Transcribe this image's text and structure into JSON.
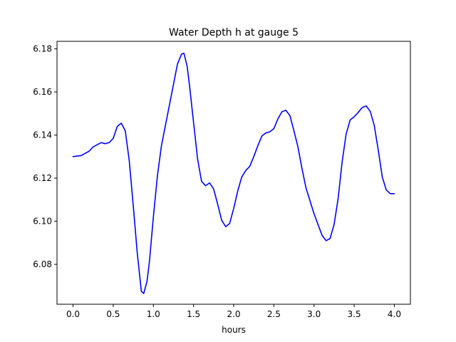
{
  "chart_data": {
    "type": "line",
    "title": "Water Depth h at gauge 5",
    "xlabel": "hours",
    "ylabel": "",
    "xlim": [
      -0.2,
      4.2
    ],
    "ylim": [
      6.0615,
      6.1835
    ],
    "grid": false,
    "xticks": [
      0.0,
      0.5,
      1.0,
      1.5,
      2.0,
      2.5,
      3.0,
      3.5,
      4.0
    ],
    "xtick_labels": [
      "0.0",
      "0.5",
      "1.0",
      "1.5",
      "2.0",
      "2.5",
      "3.0",
      "3.5",
      "4.0"
    ],
    "yticks": [
      6.08,
      6.1,
      6.12,
      6.14,
      6.16,
      6.18
    ],
    "ytick_labels": [
      "6.08",
      "6.10",
      "6.12",
      "6.14",
      "6.16",
      "6.18"
    ],
    "series": [
      {
        "color": "#0000ff",
        "x": [
          0.0,
          0.1,
          0.2,
          0.25,
          0.3,
          0.35,
          0.4,
          0.45,
          0.5,
          0.55,
          0.6,
          0.65,
          0.7,
          0.75,
          0.8,
          0.85,
          0.88,
          0.92,
          0.95,
          1.0,
          1.05,
          1.1,
          1.2,
          1.3,
          1.35,
          1.38,
          1.42,
          1.45,
          1.5,
          1.55,
          1.6,
          1.65,
          1.7,
          1.75,
          1.8,
          1.85,
          1.9,
          1.95,
          2.0,
          2.05,
          2.1,
          2.15,
          2.2,
          2.25,
          2.3,
          2.35,
          2.4,
          2.45,
          2.5,
          2.55,
          2.6,
          2.65,
          2.7,
          2.75,
          2.8,
          2.85,
          2.9,
          3.0,
          3.1,
          3.15,
          3.2,
          3.25,
          3.3,
          3.35,
          3.4,
          3.45,
          3.5,
          3.55,
          3.6,
          3.65,
          3.7,
          3.75,
          3.8,
          3.85,
          3.9,
          3.95,
          4.0
        ],
        "y": [
          6.13,
          6.1305,
          6.1325,
          6.1345,
          6.1355,
          6.1365,
          6.136,
          6.1365,
          6.1385,
          6.144,
          6.1455,
          6.142,
          6.128,
          6.107,
          6.085,
          6.0675,
          6.0665,
          6.072,
          6.081,
          6.102,
          6.121,
          6.135,
          6.154,
          6.173,
          6.1775,
          6.178,
          6.172,
          6.163,
          6.146,
          6.129,
          6.1185,
          6.1165,
          6.1178,
          6.115,
          6.108,
          6.1005,
          6.0975,
          6.099,
          6.106,
          6.114,
          6.1205,
          6.1235,
          6.1255,
          6.13,
          6.135,
          6.1395,
          6.141,
          6.1415,
          6.143,
          6.1475,
          6.1508,
          6.1515,
          6.149,
          6.142,
          6.1345,
          6.1245,
          6.1155,
          6.1035,
          6.0935,
          6.091,
          6.092,
          6.0985,
          6.1105,
          6.1275,
          6.1405,
          6.147,
          6.1485,
          6.1505,
          6.1528,
          6.1535,
          6.151,
          6.1445,
          6.133,
          6.1205,
          6.1145,
          6.1128,
          6.1128
        ]
      }
    ]
  }
}
